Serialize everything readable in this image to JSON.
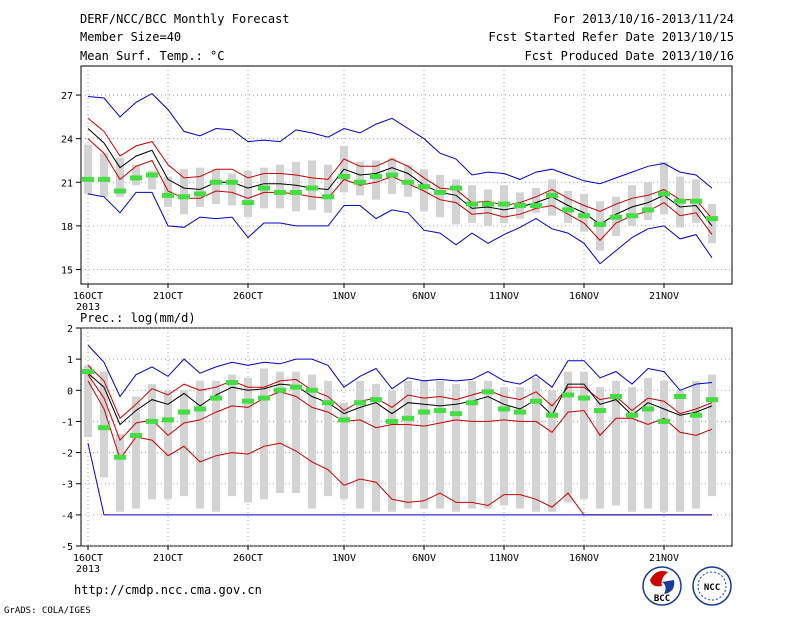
{
  "header": {
    "title": "DERF/NCC/BCC Monthly Forecast",
    "member_size": "Member Size=40",
    "variable": "Mean Surf. Temp.: °C",
    "period": "For 2013/10/16-2013/11/24",
    "started": "Fcst Started Refer Date 2013/10/15",
    "produced": "Fcst Produced Date 2013/10/16"
  },
  "footer": {
    "url": "http://cmdp.ncc.cma.gov.cn",
    "grads": "GrADS: COLA/IGES",
    "logo_left_text": "BCC",
    "logo_right_text": "NCC"
  },
  "colors": {
    "box": "#d3d3d3",
    "median": "#000000",
    "band": "#cc0000",
    "range": "#0000cc",
    "obs": "#44dd44",
    "grid": "#888888"
  },
  "chart_data": [
    {
      "id": "temperature",
      "type": "box-line",
      "title": "Mean Surf. Temp.: °C",
      "ylim": [
        14,
        29
      ],
      "yticks": [
        15,
        18,
        21,
        24,
        27
      ],
      "xticks": [
        {
          "day": 0,
          "label": "16OCT",
          "sub": "2013"
        },
        {
          "day": 5,
          "label": "21OCT"
        },
        {
          "day": 10,
          "label": "26OCT"
        },
        {
          "day": 16,
          "label": "1NOV"
        },
        {
          "day": 21,
          "label": "6NOV"
        },
        {
          "day": 26,
          "label": "11NOV"
        },
        {
          "day": 31,
          "label": "16NOV"
        },
        {
          "day": 36,
          "label": "21NOV"
        }
      ],
      "grid": true,
      "series": [
        {
          "name": "max",
          "values": [
            26.9,
            26.8,
            25.5,
            26.5,
            27.1,
            26.0,
            24.5,
            24.2,
            24.7,
            24.6,
            23.8,
            23.9,
            23.8,
            24.6,
            24.4,
            24.1,
            24.7,
            24.4,
            25.0,
            25.4,
            24.7,
            24.0,
            23.0,
            22.6,
            21.5,
            21.7,
            21.6,
            21.2,
            21.7,
            21.9,
            21.5,
            21.1,
            20.9,
            21.3,
            21.7,
            22.1,
            22.3,
            21.7,
            21.5,
            20.6
          ]
        },
        {
          "name": "upper",
          "values": [
            25.4,
            24.5,
            22.8,
            23.5,
            23.8,
            22.2,
            21.3,
            21.4,
            21.9,
            21.9,
            21.3,
            21.6,
            21.6,
            21.5,
            21.3,
            21.2,
            22.6,
            22.1,
            22.1,
            22.6,
            22.1,
            21.3,
            20.6,
            20.5,
            19.6,
            19.7,
            19.4,
            19.6,
            20.0,
            20.5,
            19.9,
            19.4,
            19.0,
            19.5,
            19.9,
            20.1,
            20.5,
            19.8,
            19.8,
            18.5
          ]
        },
        {
          "name": "median",
          "values": [
            24.7,
            23.7,
            22.0,
            22.8,
            23.2,
            21.2,
            20.6,
            20.5,
            21.0,
            21.0,
            20.6,
            20.9,
            20.9,
            20.8,
            20.6,
            20.5,
            21.9,
            21.5,
            21.6,
            22.0,
            21.6,
            20.8,
            20.3,
            20.1,
            19.2,
            19.3,
            19.1,
            19.3,
            19.6,
            20.0,
            19.4,
            18.9,
            18.1,
            18.8,
            19.3,
            19.6,
            20.1,
            19.3,
            19.4,
            18.0
          ]
        },
        {
          "name": "lower",
          "values": [
            24.0,
            23.0,
            21.2,
            22.1,
            22.5,
            20.4,
            19.9,
            19.9,
            20.4,
            20.3,
            19.9,
            20.3,
            20.3,
            20.2,
            20.0,
            19.9,
            21.2,
            20.8,
            21.0,
            21.4,
            20.9,
            20.4,
            19.8,
            19.6,
            18.8,
            18.9,
            18.6,
            18.8,
            19.2,
            19.4,
            18.8,
            18.2,
            17.0,
            18.2,
            18.7,
            19.0,
            19.6,
            18.7,
            18.9,
            17.4
          ]
        },
        {
          "name": "min",
          "values": [
            20.2,
            20.0,
            18.9,
            20.3,
            20.3,
            18.0,
            17.9,
            18.6,
            18.5,
            18.6,
            17.2,
            18.2,
            18.2,
            18.0,
            18.0,
            18.0,
            19.4,
            19.4,
            18.5,
            19.1,
            18.9,
            17.7,
            17.5,
            16.7,
            17.5,
            16.8,
            17.4,
            17.9,
            18.5,
            17.8,
            17.5,
            16.8,
            15.4,
            16.3,
            17.2,
            17.8,
            18.0,
            17.1,
            17.4,
            15.8
          ]
        }
      ],
      "boxes": {
        "q_low": [
          20.2,
          20.0,
          20.0,
          20.8,
          20.5,
          19.3,
          18.8,
          19.3,
          19.5,
          19.4,
          18.6,
          19.2,
          19.2,
          19.0,
          19.1,
          18.9,
          20.3,
          20.1,
          19.8,
          20.2,
          20.0,
          19.0,
          18.6,
          18.1,
          18.2,
          18.0,
          18.2,
          18.5,
          18.9,
          18.7,
          18.2,
          17.6,
          16.3,
          17.3,
          18.0,
          18.4,
          18.8,
          17.9,
          18.2,
          16.8
        ],
        "q_high": [
          23.6,
          23.0,
          22.7,
          22.2,
          21.8,
          21.4,
          21.9,
          22.0,
          21.9,
          21.6,
          21.8,
          22.0,
          22.2,
          22.4,
          22.5,
          22.2,
          23.5,
          22.4,
          22.5,
          22.7,
          22.2,
          21.9,
          21.5,
          21.2,
          20.8,
          20.5,
          20.8,
          20.3,
          20.6,
          21.2,
          20.4,
          20.2,
          19.7,
          20.0,
          20.8,
          21.0,
          22.4,
          21.4,
          21.2,
          19.5
        ]
      },
      "observed": [
        21.2,
        21.2,
        20.4,
        21.3,
        21.5,
        20.1,
        20.0,
        20.2,
        21.0,
        21.0,
        19.6,
        20.6,
        20.3,
        20.3,
        20.6,
        20.0,
        21.4,
        21.0,
        21.4,
        21.5,
        21.0,
        20.7,
        20.3,
        20.6,
        19.5,
        19.5,
        19.5,
        19.4,
        19.4,
        20.1,
        19.1,
        18.7,
        18.1,
        18.6,
        18.7,
        19.1,
        20.2,
        19.7,
        19.7,
        18.5
      ]
    },
    {
      "id": "precipitation",
      "type": "box-line",
      "title": "Prec.: log(mm/d)",
      "ylim": [
        -5,
        2
      ],
      "yticks": [
        -5,
        -4,
        -3,
        -2,
        -1,
        0,
        1,
        2
      ],
      "xticks": [
        {
          "day": 0,
          "label": "16OCT",
          "sub": "2013"
        },
        {
          "day": 5,
          "label": "21OCT"
        },
        {
          "day": 10,
          "label": "26OCT"
        },
        {
          "day": 16,
          "label": "1NOV"
        },
        {
          "day": 21,
          "label": "6NOV"
        },
        {
          "day": 26,
          "label": "11NOV"
        },
        {
          "day": 31,
          "label": "16NOV"
        },
        {
          "day": 36,
          "label": "21NOV"
        }
      ],
      "grid": true,
      "series": [
        {
          "name": "max",
          "values": [
            1.45,
            0.9,
            -0.2,
            0.5,
            0.75,
            0.45,
            1.0,
            0.55,
            0.75,
            0.9,
            0.8,
            0.9,
            0.85,
            1.0,
            1.0,
            0.8,
            0.1,
            0.45,
            0.7,
            0.05,
            0.4,
            0.3,
            0.35,
            0.3,
            0.35,
            0.6,
            0.3,
            0.2,
            0.5,
            0.1,
            0.95,
            0.95,
            0.4,
            0.6,
            0.2,
            0.7,
            0.6,
            0.0,
            0.2,
            0.25
          ]
        },
        {
          "name": "upper",
          "values": [
            0.8,
            0.3,
            -0.9,
            -0.45,
            0.05,
            -0.15,
            0.2,
            0.0,
            0.1,
            0.3,
            0.1,
            0.1,
            0.3,
            0.35,
            0.0,
            -0.2,
            -0.65,
            -0.35,
            -0.25,
            -0.55,
            -0.15,
            -0.25,
            -0.2,
            -0.3,
            -0.15,
            0.0,
            -0.2,
            -0.3,
            -0.05,
            -0.5,
            0.1,
            0.1,
            -0.3,
            -0.2,
            -0.65,
            -0.25,
            -0.35,
            -0.75,
            -0.6,
            -0.4
          ]
        },
        {
          "name": "median",
          "values": [
            0.55,
            0.1,
            -1.1,
            -0.65,
            -0.3,
            -0.45,
            -0.1,
            -0.5,
            -0.15,
            0.1,
            0.0,
            0.05,
            0.2,
            0.15,
            -0.2,
            -0.4,
            -0.75,
            -0.55,
            -0.4,
            -0.75,
            -0.4,
            -0.45,
            -0.5,
            -0.45,
            -0.35,
            -0.2,
            -0.45,
            -0.6,
            -0.3,
            -0.8,
            0.2,
            0.2,
            -0.45,
            -0.3,
            -0.8,
            -0.4,
            -0.6,
            -0.8,
            -0.7,
            -0.5
          ]
        },
        {
          "name": "lower",
          "values": [
            0.5,
            -0.25,
            -1.6,
            -1.05,
            -0.95,
            -1.45,
            -1.05,
            -0.95,
            -0.7,
            -0.5,
            -0.55,
            -0.25,
            -0.05,
            -0.2,
            -0.55,
            -0.7,
            -1.0,
            -0.95,
            -1.2,
            -1.1,
            -1.1,
            -1.15,
            -1.05,
            -0.95,
            -1.0,
            -1.0,
            -0.95,
            -1.0,
            -1.0,
            -1.35,
            -0.7,
            -0.65,
            -1.45,
            -0.9,
            -0.9,
            -1.1,
            -0.9,
            -1.35,
            -1.45,
            -1.25
          ]
        },
        {
          "name": "lower2",
          "values": [
            0.3,
            -0.6,
            -2.2,
            -1.5,
            -1.6,
            -2.1,
            -1.8,
            -2.3,
            -2.1,
            -2.0,
            -2.05,
            -1.8,
            -1.7,
            -1.95,
            -2.3,
            -2.55,
            -3.05,
            -2.85,
            -2.95,
            -3.5,
            -3.6,
            -3.55,
            -3.3,
            -3.6,
            -3.6,
            -3.7,
            -3.35,
            -3.35,
            -3.5,
            -3.75,
            -3.3,
            -4.0,
            -4.0,
            -4.0,
            -4.0,
            -4.0,
            -4.0,
            -4.0,
            -4.0,
            -4.0
          ]
        },
        {
          "name": "min",
          "values": [
            -1.7,
            -4.0,
            -4.0,
            -4.0,
            -4.0,
            -4.0,
            -4.0,
            -4.0,
            -4.0,
            -4.0,
            -4.0,
            -4.0,
            -4.0,
            -4.0,
            -4.0,
            -4.0,
            -4.0,
            -4.0,
            -4.0,
            -4.0,
            -4.0,
            -4.0,
            -4.0,
            -4.0,
            -4.0,
            -4.0,
            -4.0,
            -4.0,
            -4.0,
            -4.0,
            -4.0,
            -4.0,
            -4.0,
            -4.0,
            -4.0,
            -4.0,
            -4.0,
            -4.0,
            -4.0,
            -4.0
          ]
        }
      ],
      "boxes": {
        "q_low": [
          -1.5,
          -2.8,
          -3.9,
          -3.8,
          -3.5,
          -3.5,
          -3.4,
          -3.8,
          -3.9,
          -3.4,
          -3.6,
          -3.5,
          -3.3,
          -3.3,
          -3.8,
          -3.4,
          -3.5,
          -3.8,
          -3.9,
          -3.9,
          -3.8,
          -3.8,
          -3.8,
          -3.9,
          -3.8,
          -3.8,
          -3.7,
          -3.8,
          -3.9,
          -3.9,
          -3.6,
          -3.5,
          -3.8,
          -3.7,
          -3.9,
          -3.8,
          -3.9,
          -3.9,
          -3.8,
          -3.4
        ],
        "q_high": [
          0.8,
          0.6,
          -1.4,
          -0.2,
          0.2,
          0.0,
          0.0,
          0.3,
          0.3,
          0.5,
          0.4,
          0.7,
          0.6,
          0.6,
          0.5,
          0.3,
          -0.4,
          0.3,
          0.2,
          0.0,
          0.3,
          0.3,
          0.3,
          0.2,
          0.3,
          0.3,
          0.1,
          0.1,
          0.4,
          0.0,
          0.6,
          0.6,
          0.1,
          0.3,
          0.1,
          0.4,
          0.3,
          0.0,
          0.3,
          0.5
        ]
      },
      "observed": [
        0.6,
        -1.2,
        -2.15,
        -1.45,
        -1.0,
        -0.95,
        -0.7,
        -0.6,
        -0.25,
        0.25,
        -0.35,
        -0.25,
        0.0,
        0.1,
        0.0,
        -0.4,
        -0.95,
        -0.4,
        -0.3,
        -1.0,
        -0.9,
        -0.7,
        -0.65,
        -0.75,
        -0.4,
        -0.05,
        -0.6,
        -0.7,
        -0.35,
        -0.8,
        -0.15,
        -0.25,
        -0.65,
        -0.2,
        -0.8,
        -0.6,
        -1.0,
        -0.2,
        -0.8,
        -0.3
      ]
    }
  ]
}
